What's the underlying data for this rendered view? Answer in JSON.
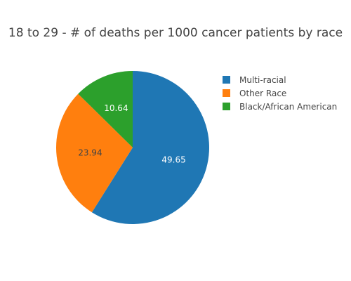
{
  "chart_data": {
    "type": "pie",
    "title": "18 to 29 - # of deaths per 1000 cancer patients by race",
    "labels": [
      "Multi-racial",
      "Other Race",
      "Black/African American"
    ],
    "values": [
      49.65,
      23.94,
      10.64
    ],
    "value_labels": [
      "49.65",
      "23.94",
      "10.64"
    ],
    "colors": [
      "#1f77b4",
      "#ff7f0e",
      "#2ca02c"
    ],
    "label_colors": [
      "#ffffff",
      "#444444",
      "#ffffff"
    ],
    "start": "12 o'clock",
    "direction": "clockwise",
    "legend_position": "right"
  }
}
